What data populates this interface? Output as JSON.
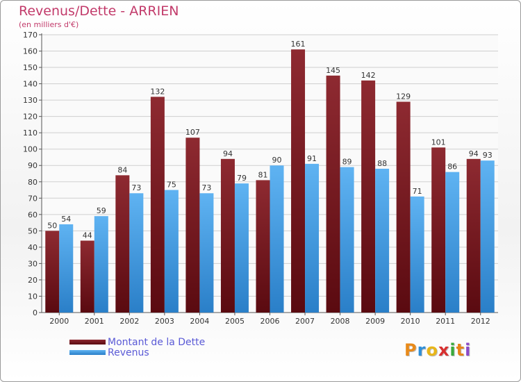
{
  "chart_data": {
    "type": "bar",
    "title": "Revenus/Dette - ARRIEN",
    "subtitle": "(en milliers d'€)",
    "xlabel": "",
    "ylabel": "",
    "ylim": [
      0,
      170
    ],
    "yticks": [
      0,
      10,
      20,
      30,
      40,
      50,
      60,
      70,
      80,
      90,
      100,
      110,
      120,
      130,
      140,
      150,
      160,
      170
    ],
    "grid": true,
    "categories": [
      "2000",
      "2001",
      "2002",
      "2003",
      "2004",
      "2005",
      "2006",
      "2007",
      "2008",
      "2009",
      "2010",
      "2011",
      "2012"
    ],
    "series": [
      {
        "name": "Montant de la Dette",
        "color": "#8b1c24",
        "values": [
          50,
          44,
          84,
          132,
          107,
          94,
          81,
          161,
          145,
          142,
          129,
          101,
          94
        ]
      },
      {
        "name": "Revenus",
        "color": "#3d9be6",
        "values": [
          54,
          59,
          73,
          75,
          73,
          79,
          90,
          91,
          89,
          88,
          71,
          86,
          93
        ]
      }
    ],
    "legend_position": "bottom-left"
  },
  "logo": {
    "letters": [
      "P",
      "r",
      "o",
      "x",
      "i",
      "t",
      "i"
    ],
    "colors": [
      "#e88a1a",
      "#2f8fd8",
      "#e8b61a",
      "#d83030",
      "#3aaa3a",
      "#e8861a",
      "#8c4ac8"
    ]
  }
}
